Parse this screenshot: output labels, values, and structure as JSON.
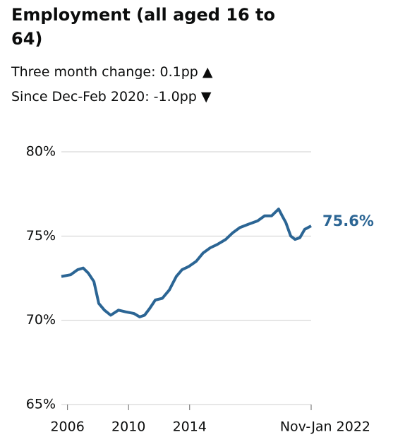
{
  "chart_data": {
    "type": "line",
    "title": "Employment (all aged 16 to 64)",
    "annotations": [
      "Three month change: 0.1pp ▲",
      "Since Dec-Feb 2020: -1.0pp ▼"
    ],
    "x": [
      2005.6,
      2006.2,
      2006.66,
      2007.03,
      2007.36,
      2007.73,
      2008.05,
      2008.42,
      2008.83,
      2009.34,
      2009.8,
      2010.36,
      2010.73,
      2011.05,
      2011.38,
      2011.75,
      2012.21,
      2012.67,
      2013.13,
      2013.5,
      2013.96,
      2014.43,
      2014.89,
      2015.35,
      2015.81,
      2016.37,
      2016.83,
      2017.29,
      2017.85,
      2018.45,
      2018.91,
      2019.37,
      2019.83,
      2020.06,
      2020.3,
      2020.62,
      2020.9,
      2021.22,
      2021.54,
      2021.96
    ],
    "values": [
      72.6,
      72.7,
      73.0,
      73.1,
      72.8,
      72.3,
      71.0,
      70.6,
      70.3,
      70.6,
      70.5,
      70.4,
      70.2,
      70.3,
      70.7,
      71.2,
      71.3,
      71.8,
      72.6,
      73.0,
      73.2,
      73.5,
      74.0,
      74.3,
      74.5,
      74.8,
      75.2,
      75.5,
      75.7,
      75.9,
      76.2,
      76.2,
      76.6,
      76.2,
      75.8,
      75.0,
      74.8,
      74.9,
      75.4,
      75.6
    ],
    "value_labels": [
      null,
      null,
      null,
      null,
      null,
      null,
      null,
      null,
      null,
      null,
      null,
      null,
      null,
      null,
      null,
      null,
      null,
      null,
      null,
      null,
      null,
      null,
      null,
      null,
      null,
      null,
      null,
      null,
      null,
      null,
      null,
      null,
      null,
      null,
      null,
      null,
      null,
      null,
      null,
      "75.6%"
    ],
    "color": "#2b6594",
    "xlim": [
      2005.6,
      2021.96
    ],
    "xticks": [
      2006,
      2010,
      2014,
      {
        "value": 2021.96,
        "label": "Nov-Jan 2022"
      }
    ],
    "ylim": [
      65,
      80
    ],
    "yticks": [
      {
        "value": 65,
        "label": "65%"
      },
      {
        "value": 70,
        "label": "70%"
      },
      {
        "value": 75,
        "label": "75%"
      },
      {
        "value": 80,
        "label": "80%"
      }
    ],
    "grid": true
  }
}
